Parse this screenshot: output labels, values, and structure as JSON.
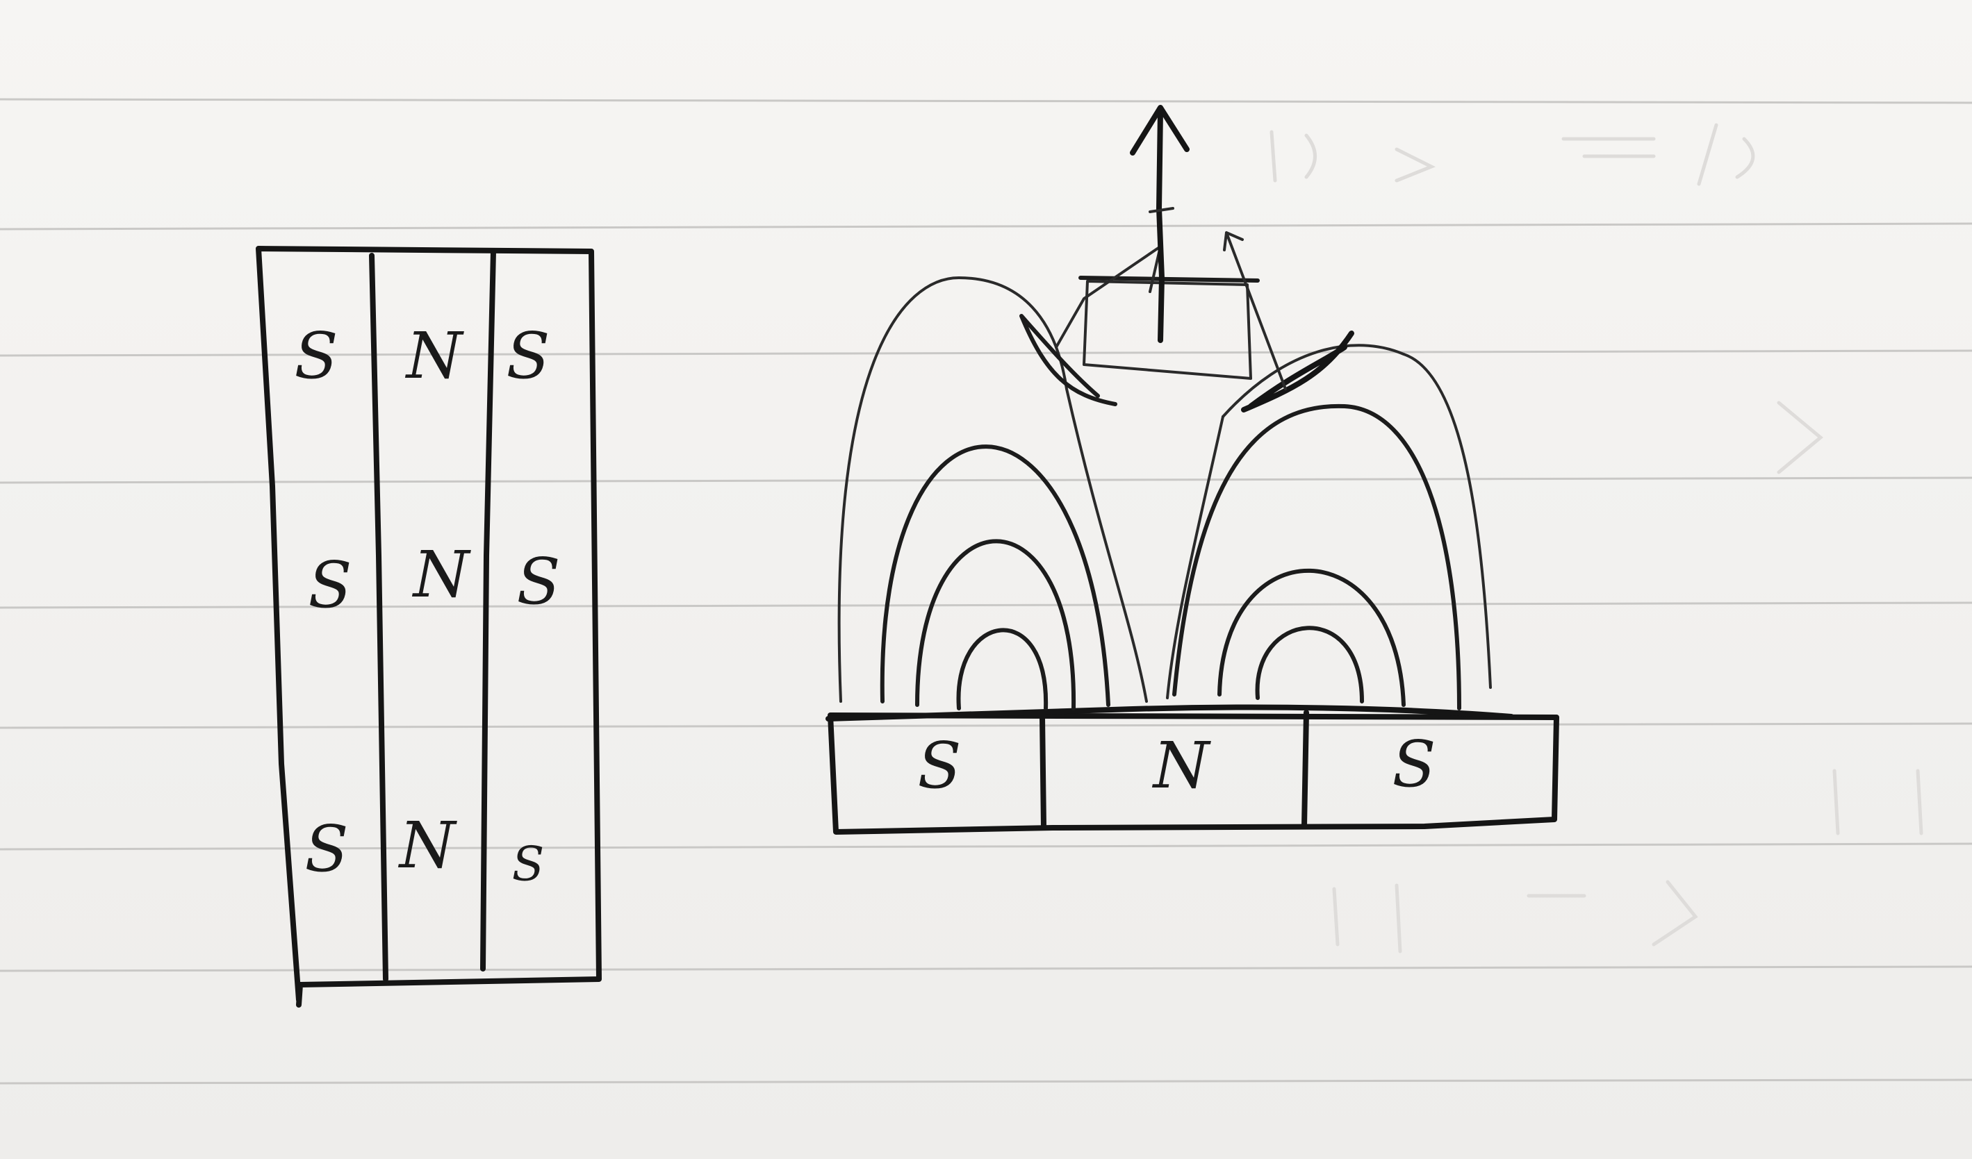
{
  "top_view": {
    "rows": [
      [
        "S",
        "N",
        "S"
      ],
      [
        "S",
        "N",
        "S"
      ],
      [
        "S",
        "N",
        "S"
      ]
    ]
  },
  "side_view": {
    "blocks": [
      "S",
      "N",
      "S"
    ]
  }
}
